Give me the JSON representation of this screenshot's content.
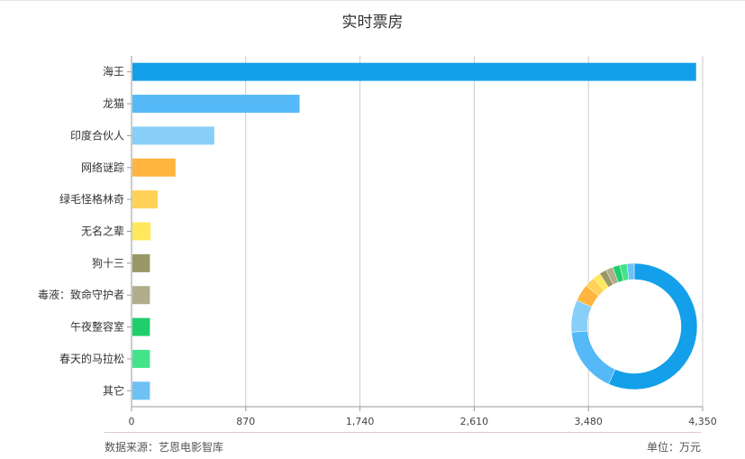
{
  "chart_data": {
    "type": "bar",
    "orientation": "horizontal",
    "title": "实时票房",
    "categories": [
      "海王",
      "龙猫",
      "印度合伙人",
      "网络谜踪",
      "绿毛怪格林奇",
      "无名之辈",
      "狗十三",
      "毒液：致命守护者",
      "午夜整容室",
      "春天的马拉松",
      "其它"
    ],
    "values": [
      4300,
      1280,
      630,
      335,
      200,
      145,
      140,
      140,
      140,
      140,
      140
    ],
    "colors": [
      "#139fe9",
      "#54b9f6",
      "#87cef8",
      "#ffb53f",
      "#ffd156",
      "#ffe85b",
      "#999865",
      "#b0ad8c",
      "#1fcd6b",
      "#44e38b",
      "#6ec1f5"
    ],
    "xticks": [
      "0",
      "870",
      "1,740",
      "2,610",
      "3,480",
      "4,350"
    ],
    "xlim": [
      0,
      4350
    ],
    "grid": true,
    "inset_donut": {
      "type": "pie",
      "values": [
        4300,
        1280,
        630,
        335,
        200,
        145,
        140,
        140,
        140,
        140,
        140
      ],
      "colors": [
        "#139fe9",
        "#54b9f6",
        "#87cef8",
        "#ffb53f",
        "#ffd156",
        "#ffe85b",
        "#999865",
        "#b0ad8c",
        "#1fcd6b",
        "#44e38b",
        "#6ec1f5"
      ]
    }
  },
  "footer": {
    "source": "数据来源：艺恩电影智库",
    "unit": "单位：万元"
  }
}
